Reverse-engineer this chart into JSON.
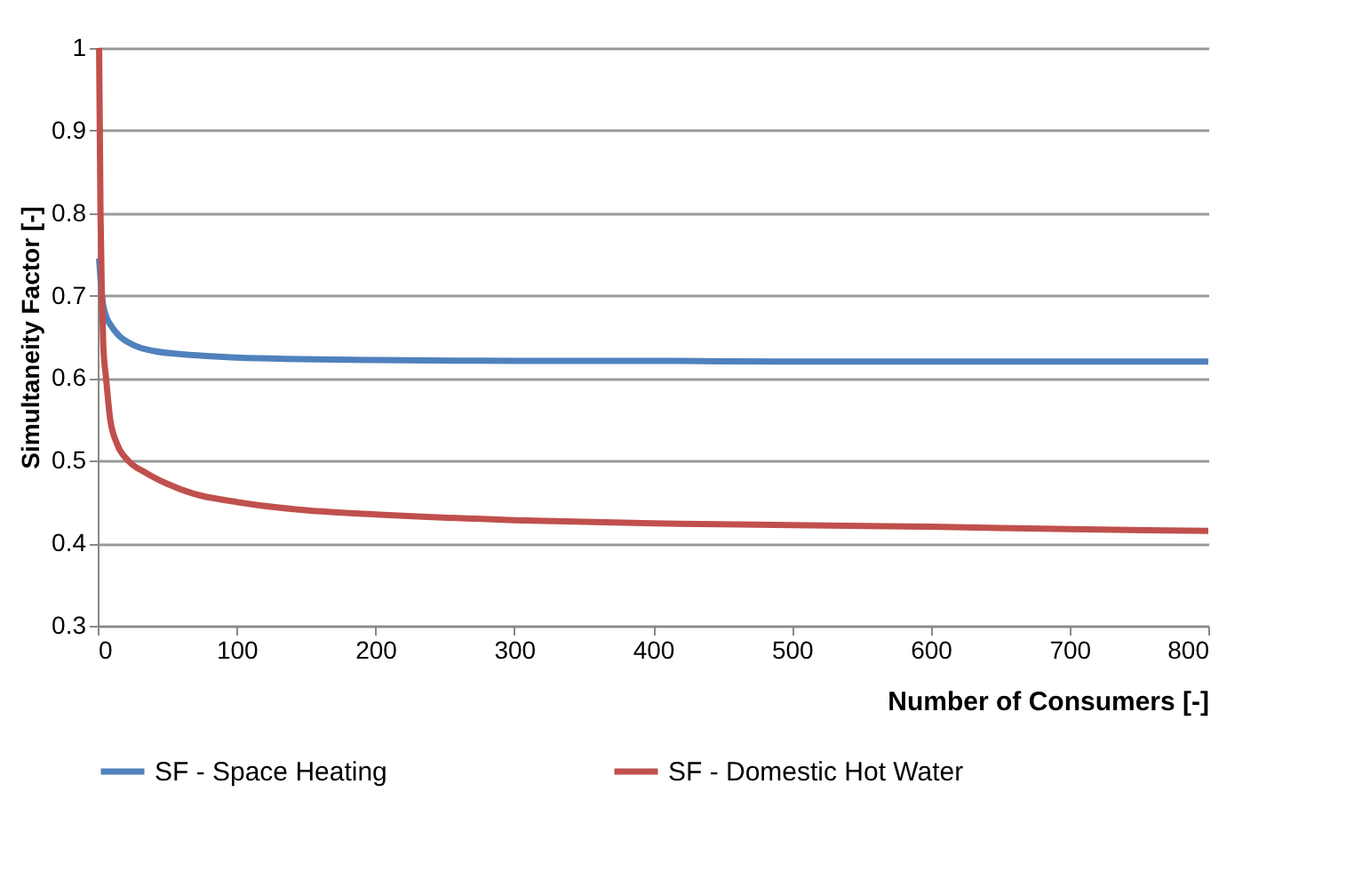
{
  "chart_data": {
    "type": "line",
    "xlabel": "Number of Consumers [-]",
    "ylabel": "Simultaneity Factor [-]",
    "xlim": [
      0,
      800
    ],
    "xticks": [
      0,
      100,
      200,
      300,
      400,
      500,
      600,
      700,
      800
    ],
    "ylim": [
      0.3,
      1
    ],
    "yticks": [
      0.3,
      0.4,
      0.5,
      0.6,
      0.7,
      0.8,
      0.9,
      1
    ],
    "grid": "y",
    "legend": "bottom",
    "marker": "none",
    "line_style": "solid",
    "series": [
      {
        "name": "SF - Space Heating",
        "color": "#4f81bd",
        "x": [
          1,
          3,
          6,
          9,
          15,
          26,
          40,
          69,
          100,
          200,
          300,
          400,
          500,
          600,
          700,
          800
        ],
        "values": [
          0.745,
          0.7,
          0.675,
          0.665,
          0.652,
          0.64,
          0.633,
          0.628,
          0.625,
          0.622,
          0.621,
          0.621,
          0.62,
          0.62,
          0.62,
          0.62
        ]
      },
      {
        "name": "SF - Domestic Hot Water",
        "color": "#c0504d",
        "x": [
          1,
          2,
          3,
          4,
          6,
          9,
          14,
          22,
          35,
          50,
          69,
          100,
          150,
          200,
          300,
          400,
          500,
          600,
          700,
          800
        ],
        "values": [
          1,
          0.8,
          0.7,
          0.64,
          0.6,
          0.55,
          0.52,
          0.5,
          0.485,
          0.472,
          0.46,
          0.45,
          0.44,
          0.435,
          0.428,
          0.424,
          0.422,
          0.42,
          0.417,
          0.415
        ]
      }
    ]
  }
}
